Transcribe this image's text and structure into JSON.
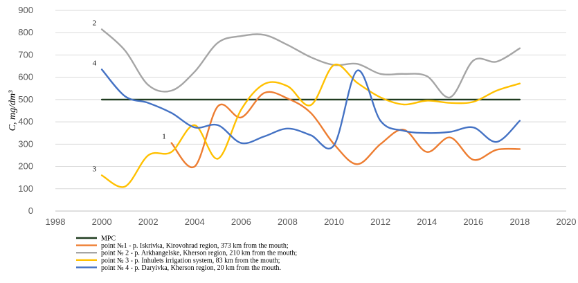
{
  "chart_data": {
    "type": "line",
    "title": "",
    "xlabel": "",
    "ylabel": "C, mg/dm³",
    "xlim": [
      1998,
      2020
    ],
    "ylim": [
      0,
      900
    ],
    "x_ticks": [
      "1998",
      "2000",
      "2002",
      "2004",
      "2006",
      "2008",
      "2010",
      "2012",
      "2014",
      "2016",
      "2018",
      "2020"
    ],
    "y_ticks": [
      "0",
      "100",
      "200",
      "300",
      "400",
      "500",
      "600",
      "700",
      "800",
      "900"
    ],
    "grid": true,
    "legend_position": "bottom-left",
    "series": [
      {
        "name": "MPC",
        "color": "#1f3b1f",
        "tag": "",
        "x": [
          2000,
          2018
        ],
        "y": [
          500,
          500
        ]
      },
      {
        "name": "point №1 - p. Iskrivka, Kirovohrad region, 373 km from the mouth;",
        "color": "#ed7d31",
        "tag": "1",
        "x": [
          2003,
          2004,
          2005,
          2006,
          2007,
          2008,
          2009,
          2010,
          2011,
          2012,
          2013,
          2014,
          2015,
          2016,
          2017,
          2018
        ],
        "y": [
          305,
          200,
          470,
          420,
          530,
          505,
          440,
          300,
          210,
          300,
          365,
          265,
          330,
          230,
          275,
          278
        ]
      },
      {
        "name": "point № 2 - p. Arkhangelske, Kherson region, 210 km from the mouth;",
        "color": "#a5a5a5",
        "tag": "2",
        "x": [
          2000,
          2001,
          2002,
          2003,
          2004,
          2005,
          2006,
          2007,
          2008,
          2009,
          2010,
          2011,
          2012,
          2013,
          2014,
          2015,
          2016,
          2017,
          2018
        ],
        "y": [
          815,
          720,
          565,
          540,
          625,
          755,
          785,
          790,
          745,
          690,
          655,
          660,
          615,
          615,
          605,
          510,
          675,
          670,
          730
        ]
      },
      {
        "name": "point № 3 - p. Inhulets irrigation system, 83 km from the mouth;",
        "color": "#ffc000",
        "tag": "3",
        "x": [
          2000,
          2001,
          2002,
          2003,
          2004,
          2005,
          2006,
          2007,
          2008,
          2009,
          2010,
          2011,
          2012,
          2013,
          2014,
          2015,
          2016,
          2017,
          2018
        ],
        "y": [
          160,
          110,
          250,
          265,
          385,
          235,
          455,
          570,
          560,
          475,
          655,
          575,
          510,
          478,
          495,
          485,
          490,
          540,
          572
        ]
      },
      {
        "name": "point № 4 - p. Daryivka, Kherson region, 20 km from the mouth.",
        "color": "#4472c4",
        "tag": "4",
        "x": [
          2000,
          2001,
          2002,
          2003,
          2004,
          2005,
          2006,
          2007,
          2008,
          2009,
          2010,
          2011,
          2012,
          2013,
          2014,
          2015,
          2016,
          2017,
          2018
        ],
        "y": [
          635,
          515,
          485,
          440,
          375,
          385,
          305,
          335,
          370,
          340,
          295,
          630,
          405,
          360,
          350,
          355,
          375,
          310,
          405
        ]
      }
    ]
  }
}
